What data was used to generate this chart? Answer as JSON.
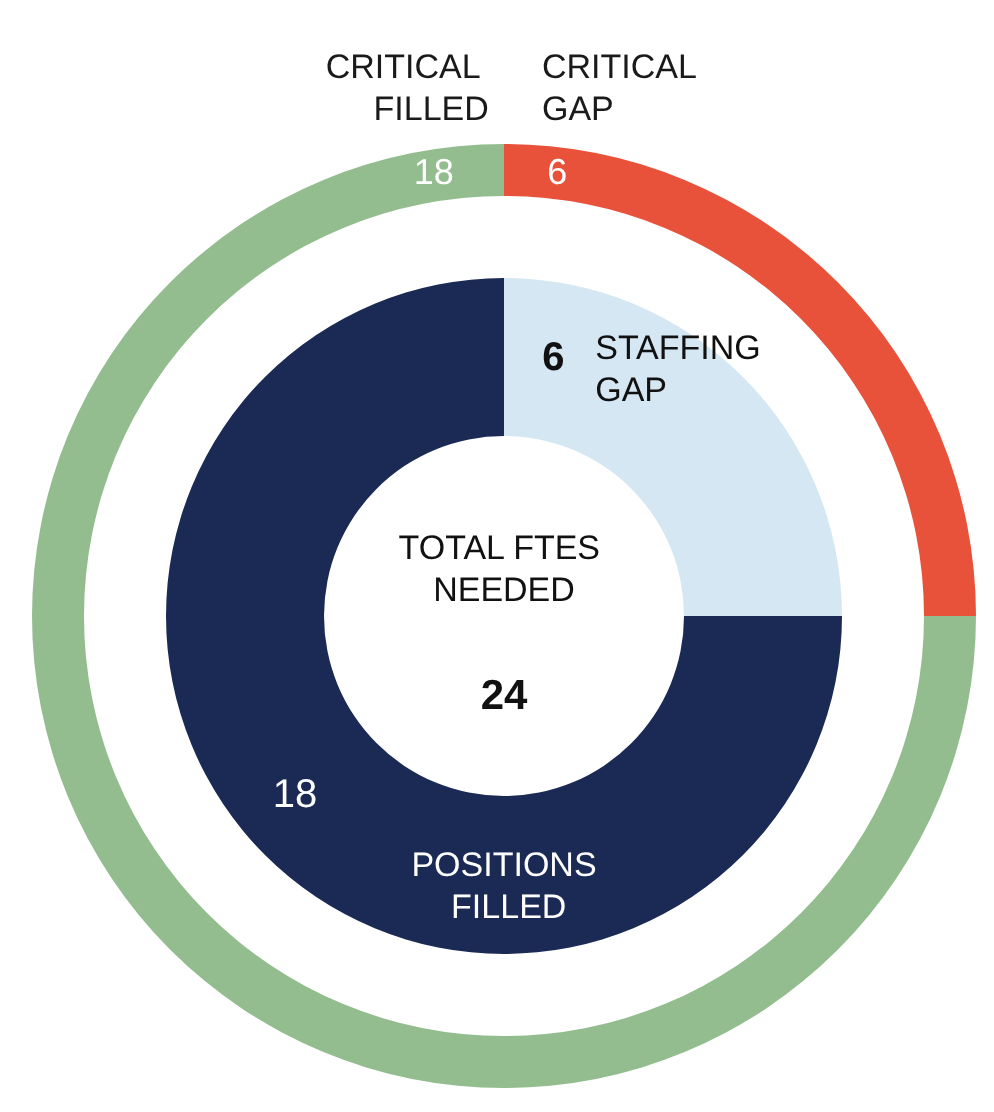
{
  "chart_data": [
    {
      "type": "donut",
      "categories": [
        "CRITICAL FILLED",
        "CRITICAL GAP"
      ],
      "values": [
        18,
        6
      ],
      "colors": [
        "#93bd8f",
        "#e8523a"
      ],
      "data_labels": true
    },
    {
      "type": "donut",
      "title": "TOTAL FTES NEEDED",
      "annotations": [
        "24"
      ],
      "categories": [
        "STAFFING GAP",
        "POSITIONS FILLED"
      ],
      "values": [
        6,
        18
      ],
      "colors": [
        "#d5e7f3",
        "#1b2a55"
      ],
      "data_labels": true
    }
  ]
}
